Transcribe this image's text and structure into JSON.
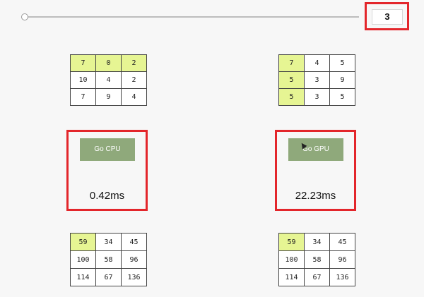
{
  "size_control": {
    "value": "3"
  },
  "matrix_a": [
    [
      {
        "v": "7",
        "hl": true
      },
      {
        "v": "0",
        "hl": true
      },
      {
        "v": "2",
        "hl": true
      }
    ],
    [
      {
        "v": "10",
        "hl": false
      },
      {
        "v": "4",
        "hl": false
      },
      {
        "v": "2",
        "hl": false
      }
    ],
    [
      {
        "v": "7",
        "hl": false
      },
      {
        "v": "9",
        "hl": false
      },
      {
        "v": "4",
        "hl": false
      }
    ]
  ],
  "matrix_b": [
    [
      {
        "v": "7",
        "hl": true
      },
      {
        "v": "4",
        "hl": false
      },
      {
        "v": "5",
        "hl": false
      }
    ],
    [
      {
        "v": "5",
        "hl": true
      },
      {
        "v": "3",
        "hl": false
      },
      {
        "v": "9",
        "hl": false
      }
    ],
    [
      {
        "v": "5",
        "hl": true
      },
      {
        "v": "3",
        "hl": false
      },
      {
        "v": "5",
        "hl": false
      }
    ]
  ],
  "cpu": {
    "button_label": "Go CPU",
    "time": "0.42ms"
  },
  "gpu": {
    "button_label": "Go GPU",
    "time": "22.23ms"
  },
  "result_cpu": [
    [
      {
        "v": "59",
        "hl": true
      },
      {
        "v": "34",
        "hl": false
      },
      {
        "v": "45",
        "hl": false
      }
    ],
    [
      {
        "v": "100",
        "hl": false
      },
      {
        "v": "58",
        "hl": false
      },
      {
        "v": "96",
        "hl": false
      }
    ],
    [
      {
        "v": "114",
        "hl": false
      },
      {
        "v": "67",
        "hl": false
      },
      {
        "v": "136",
        "hl": false
      }
    ]
  ],
  "result_gpu": [
    [
      {
        "v": "59",
        "hl": true
      },
      {
        "v": "34",
        "hl": false
      },
      {
        "v": "45",
        "hl": false
      }
    ],
    [
      {
        "v": "100",
        "hl": false
      },
      {
        "v": "58",
        "hl": false
      },
      {
        "v": "96",
        "hl": false
      }
    ],
    [
      {
        "v": "114",
        "hl": false
      },
      {
        "v": "67",
        "hl": false
      },
      {
        "v": "136",
        "hl": false
      }
    ]
  ],
  "colors": {
    "highlight": "#e6f593",
    "button": "#8fa97b",
    "frame": "#e3262b"
  }
}
